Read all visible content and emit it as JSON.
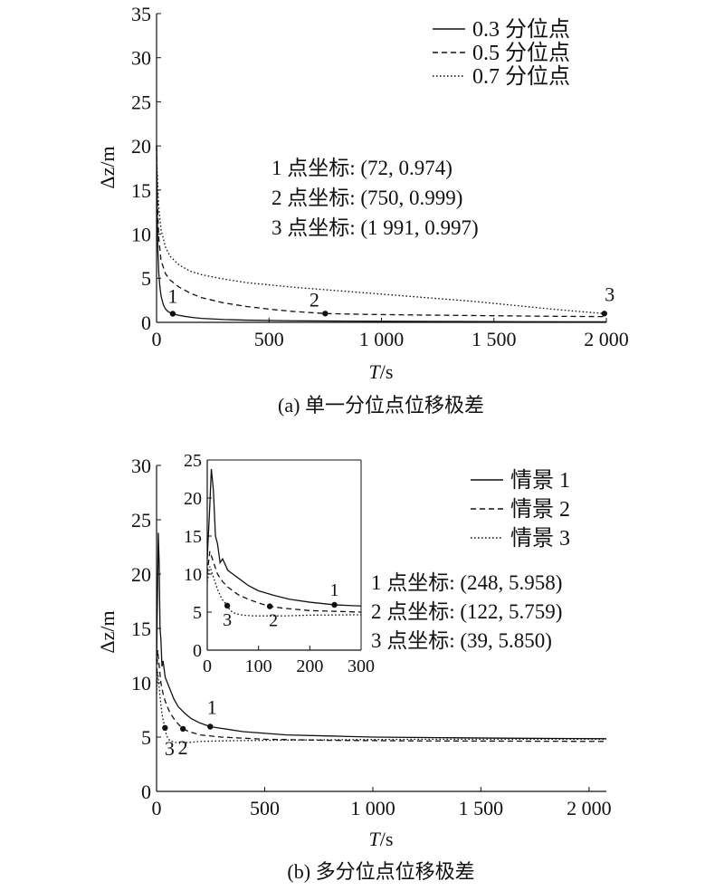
{
  "chart_data": [
    {
      "type": "line",
      "caption": "(a) 单一分位点位移极差",
      "xlabel_italic": "T",
      "xlabel_unit": "/s",
      "ylabel": "Δz/m",
      "xlim": [
        0,
        2000
      ],
      "ylim": [
        0,
        35
      ],
      "x_ticks": [
        0,
        500,
        1000,
        1500,
        2000
      ],
      "x_tick_labels": [
        "0",
        "500",
        "1 000",
        "1 500",
        "2 000"
      ],
      "y_ticks": [
        0,
        5,
        10,
        15,
        20,
        25,
        30,
        35
      ],
      "y_tick_labels": [
        "0",
        "5",
        "10",
        "15",
        "20",
        "25",
        "30",
        "35"
      ],
      "grid": false,
      "legend_position": "top-right",
      "series": [
        {
          "name": "0.3 分位点",
          "style": "solid",
          "x": [
            0,
            3,
            6,
            10,
            15,
            20,
            30,
            40,
            50,
            60,
            72,
            90,
            120,
            160,
            200,
            300,
            400,
            600,
            800,
            1000,
            1300,
            1600,
            2000
          ],
          "y": [
            20.0,
            12.0,
            8.0,
            5.5,
            4.0,
            3.0,
            2.0,
            1.5,
            1.25,
            1.1,
            0.974,
            0.85,
            0.7,
            0.55,
            0.45,
            0.32,
            0.25,
            0.18,
            0.15,
            0.12,
            0.1,
            0.08,
            0.06
          ]
        },
        {
          "name": "0.5 分位点",
          "style": "dashed",
          "x": [
            0,
            3,
            6,
            10,
            20,
            40,
            60,
            100,
            150,
            200,
            300,
            400,
            500,
            600,
            750,
            900,
            1100,
            1300,
            1500,
            1700,
            2000
          ],
          "y": [
            20.0,
            15.0,
            12.0,
            9.5,
            7.0,
            5.5,
            4.8,
            4.0,
            3.3,
            2.8,
            2.2,
            1.8,
            1.5,
            1.25,
            0.999,
            0.92,
            0.85,
            0.8,
            0.75,
            0.7,
            0.65
          ]
        },
        {
          "name": "0.7 分位点",
          "style": "dotted",
          "x": [
            0,
            3,
            6,
            10,
            20,
            40,
            60,
            100,
            150,
            200,
            300,
            400,
            600,
            800,
            1000,
            1200,
            1400,
            1600,
            1800,
            1991
          ],
          "y": [
            20.0,
            17.0,
            15.0,
            13.0,
            10.5,
            8.5,
            7.5,
            6.5,
            5.8,
            5.4,
            4.9,
            4.5,
            4.0,
            3.6,
            3.2,
            2.8,
            2.4,
            1.9,
            1.4,
            0.997
          ]
        }
      ],
      "marked_points": [
        {
          "label": "1",
          "x": 72,
          "y": 0.974
        },
        {
          "label": "2",
          "x": 750,
          "y": 0.999
        },
        {
          "label": "3",
          "x": 1991,
          "y": 0.997
        }
      ],
      "annotations": [
        "1 点坐标: (72, 0.974)",
        "2 点坐标: (750, 0.999)",
        "3 点坐标: (1 991, 0.997)"
      ]
    },
    {
      "type": "line",
      "caption": "(b) 多分位点位移极差",
      "xlabel_italic": "T",
      "xlabel_unit": "/s",
      "ylabel": "Δz/m",
      "xlim": [
        0,
        2080
      ],
      "ylim": [
        0,
        30
      ],
      "x_ticks": [
        0,
        500,
        1000,
        1500,
        2000
      ],
      "x_tick_labels": [
        "0",
        "500",
        "1 000",
        "1 500",
        "2 000"
      ],
      "y_ticks": [
        0,
        5,
        10,
        15,
        20,
        25,
        30
      ],
      "y_tick_labels": [
        "0",
        "5",
        "10",
        "15",
        "20",
        "25",
        "30"
      ],
      "grid": false,
      "legend_position": "top-right",
      "series": [
        {
          "name": "情景 1",
          "style": "solid",
          "x": [
            0,
            5,
            8,
            12,
            16,
            20,
            25,
            30,
            40,
            50,
            60,
            80,
            100,
            130,
            160,
            200,
            248,
            300,
            400,
            600,
            800,
            1000,
            1300,
            1600,
            2080
          ],
          "y": [
            12.0,
            19.0,
            23.8,
            21.0,
            15.0,
            14.0,
            11.5,
            12.0,
            10.5,
            10.0,
            9.5,
            8.5,
            7.8,
            7.2,
            6.7,
            6.3,
            5.958,
            5.8,
            5.5,
            5.2,
            5.1,
            5.0,
            4.95,
            4.9,
            4.85
          ]
        },
        {
          "name": "情景 2",
          "style": "dashed",
          "x": [
            0,
            5,
            10,
            15,
            20,
            30,
            40,
            50,
            60,
            80,
            100,
            122,
            150,
            200,
            300,
            500,
            800,
            1200,
            2080
          ],
          "y": [
            10.0,
            13.0,
            12.0,
            11.0,
            10.0,
            9.0,
            8.3,
            7.8,
            7.3,
            6.7,
            6.2,
            5.759,
            5.5,
            5.2,
            5.0,
            4.8,
            4.7,
            4.65,
            4.6
          ]
        },
        {
          "name": "情景 3",
          "style": "dotted",
          "x": [
            0,
            5,
            10,
            15,
            20,
            25,
            30,
            35,
            39,
            45,
            55,
            70,
            90,
            120,
            150,
            200,
            300,
            500,
            800,
            1200,
            2080
          ],
          "y": [
            9.0,
            11.0,
            10.0,
            9.0,
            8.0,
            7.2,
            6.6,
            6.2,
            5.85,
            5.2,
            4.8,
            4.6,
            4.5,
            4.5,
            4.5,
            4.6,
            4.65,
            4.7,
            4.75,
            4.8,
            4.8
          ]
        }
      ],
      "marked_points": [
        {
          "label": "1",
          "x": 248,
          "y": 5.958
        },
        {
          "label": "2",
          "x": 122,
          "y": 5.759
        },
        {
          "label": "3",
          "x": 39,
          "y": 5.85
        }
      ],
      "inset": {
        "xlim": [
          0,
          300
        ],
        "ylim": [
          0,
          25
        ],
        "x_ticks": [
          0,
          100,
          200,
          300
        ],
        "x_tick_labels": [
          "0",
          "100",
          "200",
          "300"
        ],
        "y_ticks": [
          0,
          5,
          10,
          15,
          20,
          25
        ],
        "y_tick_labels": [
          "0",
          "5",
          "10",
          "15",
          "20",
          "25"
        ]
      },
      "annotations": [
        "1 点坐标: (248, 5.958)",
        "2 点坐标: (122, 5.759)",
        "3 点坐标: (39, 5.850)"
      ]
    }
  ]
}
